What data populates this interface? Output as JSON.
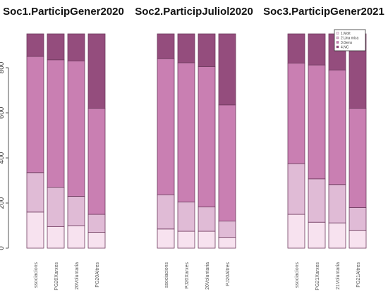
{
  "chart_data": [
    {
      "type": "bar",
      "stacked": true,
      "title": "Soc1.ParticipGener2020",
      "categories": [
        "ssociacions",
        "PG20Xarxes",
        "20Voluntaria",
        "PG20Altres"
      ],
      "series": [
        {
          "values": [
            160,
            95,
            100,
            70
          ]
        },
        {
          "values": [
            175,
            175,
            130,
            80
          ]
        },
        {
          "values": [
            515,
            565,
            600,
            470
          ]
        },
        {
          "values": [
            100,
            115,
            120,
            330
          ]
        }
      ],
      "yticks": [
        0,
        200,
        400,
        600,
        800
      ],
      "ylim": [
        0,
        950
      ]
    },
    {
      "type": "bar",
      "stacked": true,
      "title": "Soc2.ParticipJuliol2020",
      "categories": [
        "ssociacions",
        "PJ20Xarxes",
        "20Voluntaria",
        "PJ20Altres"
      ],
      "series": [
        {
          "values": [
            85,
            75,
            75,
            48
          ]
        },
        {
          "values": [
            152,
            130,
            108,
            72
          ]
        },
        {
          "values": [
            603,
            617,
            622,
            515
          ]
        },
        {
          "values": [
            110,
            128,
            145,
            315
          ]
        }
      ],
      "ylim": [
        0,
        950
      ]
    },
    {
      "type": "bar",
      "stacked": true,
      "title": "Soc3.ParticipGener2021",
      "categories": [
        "ssociacions",
        "PG21Xarxes",
        "21Voluntaria",
        "PG21Altres"
      ],
      "series": [
        {
          "values": [
            150,
            115,
            112,
            80
          ]
        },
        {
          "values": [
            225,
            192,
            170,
            100
          ]
        },
        {
          "values": [
            445,
            505,
            508,
            440
          ]
        },
        {
          "values": [
            130,
            138,
            160,
            330
          ]
        }
      ],
      "legend": [
        "1.Molt",
        "2.Una mica",
        "3.Gens",
        "4.NC"
      ],
      "legend_position": "top-right",
      "ylim": [
        0,
        950
      ]
    }
  ],
  "colors": [
    "#f7e2ef",
    "#e0bbd6",
    "#c97fb2",
    "#944d7d"
  ],
  "border_color": "#6e3a5e"
}
